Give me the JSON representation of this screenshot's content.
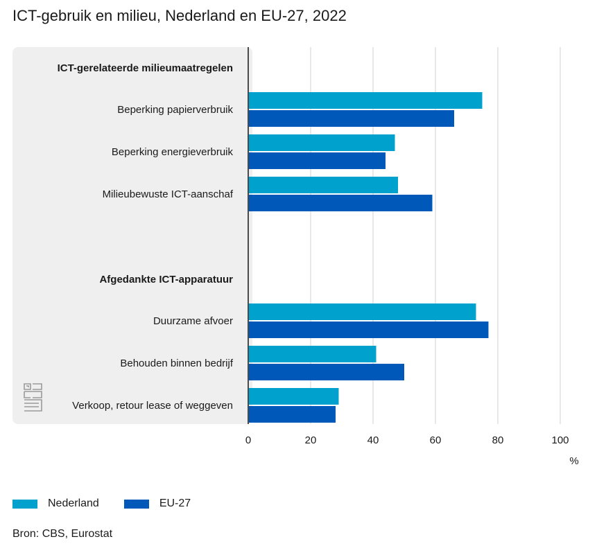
{
  "title": "ICT-gebruik en milieu, Nederland en EU-27, 2022",
  "source": "Bron: CBS, Eurostat",
  "colors": {
    "nederland": "#00a1cd",
    "eu27": "#0058b8",
    "panel": "#efefef",
    "axis": "#4a4a4a",
    "grid": "#d2d2d2"
  },
  "chart_data": {
    "type": "bar",
    "orientation": "horizontal",
    "title": "ICT-gebruik en milieu, Nederland en EU-27, 2022",
    "xlabel": "%",
    "xlim": [
      0,
      100
    ],
    "xticks": [
      0,
      20,
      40,
      60,
      80,
      100
    ],
    "grid": true,
    "legend_position": "bottom-left",
    "groups": [
      {
        "label": "ICT-gerelateerde milieumaatregelen",
        "categories": [
          "Beperking papierverbruik",
          "Beperking energieverbruik",
          "Milieubewuste ICT-aanschaf"
        ]
      },
      {
        "label": "Afgedankte ICT-apparatuur",
        "categories": [
          "Duurzame afvoer",
          "Behouden binnen bedrijf",
          "Verkoop, retour lease of weggeven"
        ]
      }
    ],
    "series": [
      {
        "name": "Nederland",
        "color": "#00a1cd",
        "values": [
          75,
          47,
          48,
          73,
          41,
          29
        ]
      },
      {
        "name": "EU-27",
        "color": "#0058b8",
        "values": [
          66,
          44,
          59,
          77,
          50,
          28
        ]
      }
    ]
  },
  "logo_icon": "cbs-logo-icon"
}
